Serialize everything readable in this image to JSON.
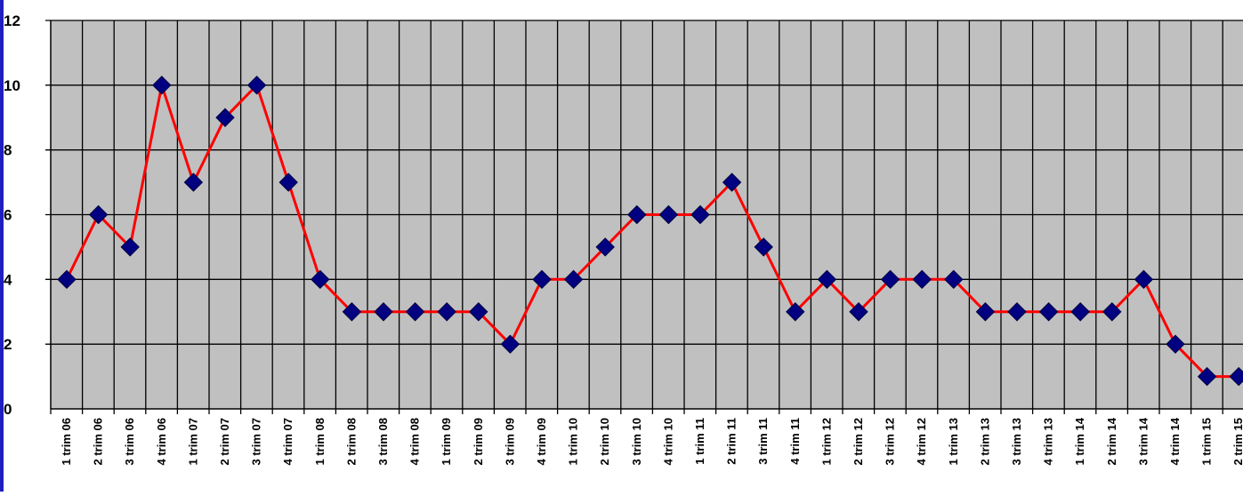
{
  "chart_data": {
    "type": "line",
    "title": "",
    "xlabel": "",
    "ylabel": "",
    "ylim": [
      0,
      12
    ],
    "yticks": [
      0,
      2,
      4,
      6,
      8,
      10,
      12
    ],
    "grid": true,
    "legend": "none",
    "colors": {
      "plot_background": "#c0c0c0",
      "line": "#ff0000",
      "marker": "#000080",
      "grid": "#000000",
      "left_edge_accent": "#1f1fbf"
    },
    "categories": [
      "1 trim 06",
      "2 trim 06",
      "3 trim 06",
      "4 trim 06",
      "1 trim 07",
      "2 trim 07",
      "3 trim 07",
      "4 trim 07",
      "1 trim 08",
      "2 trim 08",
      "3 trim 08",
      "4 trim 08",
      "1 trim 09",
      "2 trim 09",
      "3 trim 09",
      "4 trim 09",
      "1 trim 10",
      "2 trim 10",
      "3 trim 10",
      "4 trim 10",
      "1 trim 11",
      "2 trim 11",
      "3 trim 11",
      "4 trim 11",
      "1 trim 12",
      "2 trim 12",
      "3 trim 12",
      "4 trim 12",
      "1 trim 13",
      "2 trim 13",
      "3 trim 13",
      "4 trim 13",
      "1 trim 14",
      "2 trim 14",
      "3 trim 14",
      "4 trim 14",
      "1 trim 15",
      "2 trim 15"
    ],
    "series": [
      {
        "values": [
          4,
          6,
          5,
          10,
          7,
          9,
          10,
          7,
          4,
          3,
          3,
          3,
          3,
          3,
          2,
          4,
          4,
          5,
          6,
          6,
          6,
          7,
          5,
          3,
          4,
          3,
          4,
          4,
          4,
          3,
          3,
          3,
          3,
          3,
          4,
          2,
          1,
          1
        ]
      }
    ]
  }
}
